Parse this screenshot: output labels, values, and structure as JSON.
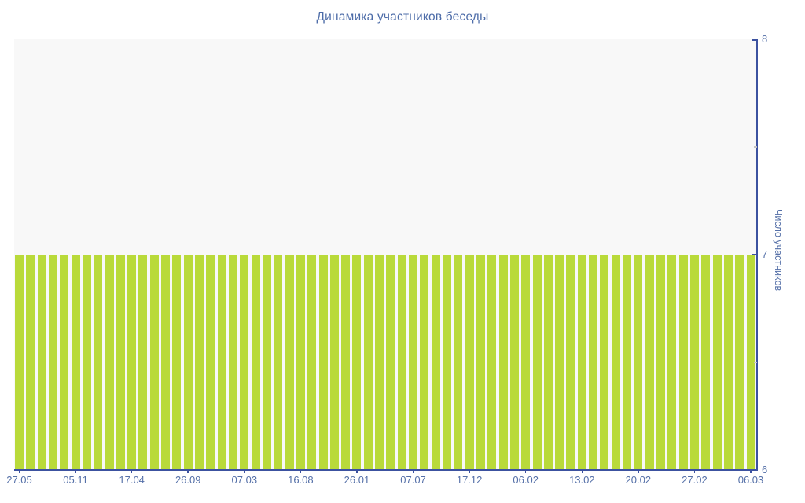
{
  "chart": {
    "title": "Динамика участников беседы",
    "y_axis_title": "Число участников"
  },
  "chart_data": {
    "type": "bar",
    "title": "Динамика участников беседы",
    "xlabel": "",
    "ylabel": "Число участников",
    "ylim": [
      6,
      8
    ],
    "yticks_major": [
      8,
      7,
      6
    ],
    "yticks_minor": [
      7.5,
      6.5
    ],
    "grid": false,
    "legend": "none",
    "x_tick_labels": [
      "27.05",
      "05.11",
      "17.04",
      "26.09",
      "07.03",
      "16.08",
      "26.01",
      "07.07",
      "17.12",
      "06.02",
      "13.02",
      "20.02",
      "27.02",
      "06.03"
    ],
    "x_tick_every_n_bars": 5,
    "bar_count": 66,
    "values": [
      7,
      7,
      7,
      7,
      7,
      7,
      7,
      7,
      7,
      7,
      7,
      7,
      7,
      7,
      7,
      7,
      7,
      7,
      7,
      7,
      7,
      7,
      7,
      7,
      7,
      7,
      7,
      7,
      7,
      7,
      7,
      7,
      7,
      7,
      7,
      7,
      7,
      7,
      7,
      7,
      7,
      7,
      7,
      7,
      7,
      7,
      7,
      7,
      7,
      7,
      7,
      7,
      7,
      7,
      7,
      7,
      7,
      7,
      7,
      7,
      7,
      7,
      7,
      7,
      7,
      7
    ],
    "colors": {
      "bar": "#b9da3a",
      "plot_background": "#f8f8f8",
      "axis_line": "#3c52a0",
      "tick_label": "#5570a8",
      "title": "#4d6ca8",
      "minor_tick": "#c4c4c4"
    }
  }
}
